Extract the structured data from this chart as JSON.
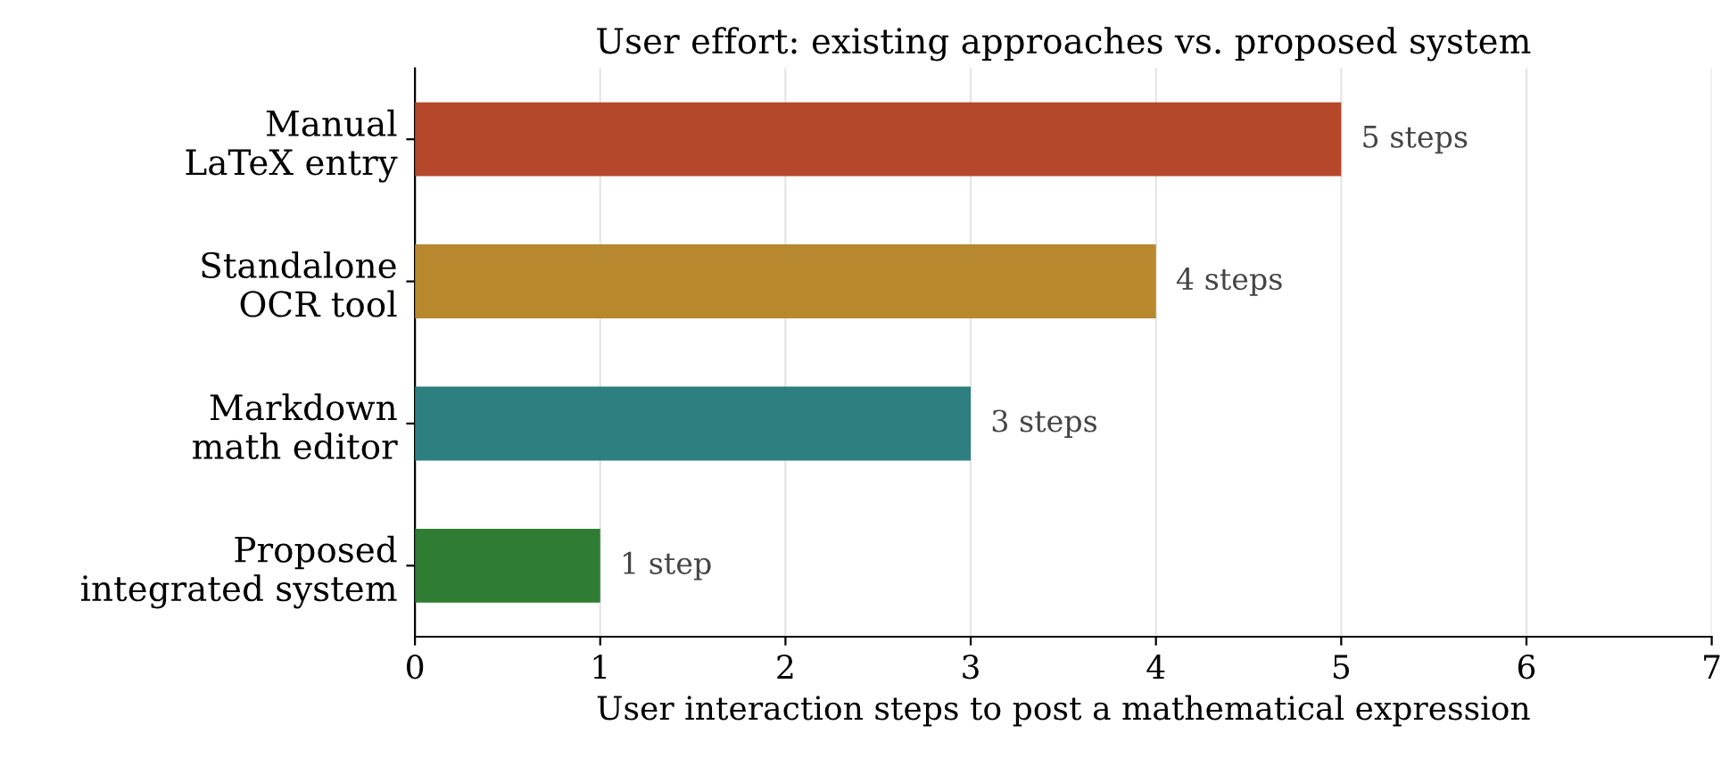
{
  "chart_data": {
    "type": "bar",
    "orientation": "horizontal",
    "title": "User effort: existing approaches vs. proposed system",
    "xlabel": "User interaction steps to post a mathematical expression",
    "categories": [
      "Manual\nLaTeX entry",
      "Standalone\nOCR tool",
      "Markdown\nmath editor",
      "Proposed\nintegrated system"
    ],
    "values": [
      5,
      4,
      3,
      1
    ],
    "colors": [
      "#b5472b",
      "#b8882e",
      "#2e7f80",
      "#2e7d32"
    ],
    "value_labels": [
      "5 steps",
      "4 steps",
      "3 steps",
      "1 step"
    ],
    "xlim": [
      0,
      7
    ],
    "xticks": [
      0,
      1,
      2,
      3,
      4,
      5,
      6,
      7
    ],
    "grid": "x"
  }
}
